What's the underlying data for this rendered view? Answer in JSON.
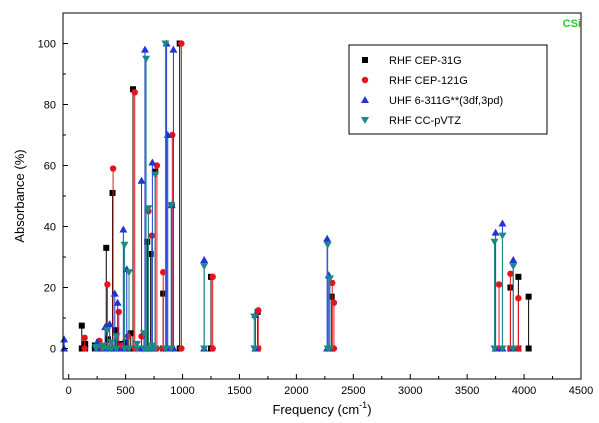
{
  "chart_data": {
    "type": "scatter",
    "style": "stem",
    "corner_label": "CSi",
    "xlabel": "Frequency (cm",
    "xlabel_sup": "-1",
    "xlabel_end": ")",
    "ylabel": "Absorbance (%)",
    "xlim": [
      -50,
      4500
    ],
    "ylim": [
      -10,
      110
    ],
    "xticks": [
      0,
      500,
      1000,
      1500,
      2000,
      2500,
      3000,
      3500,
      4000,
      4500
    ],
    "yticks": [
      0,
      20,
      40,
      60,
      80,
      100
    ],
    "grid": false,
    "legend_position": "top-right",
    "series": [
      {
        "name": "RHF CEP-31G",
        "marker": "square",
        "color": "#000000",
        "points": [
          {
            "x": 115,
            "y": 7.5
          },
          {
            "x": 145,
            "y": 1.5
          },
          {
            "x": 230,
            "y": 1
          },
          {
            "x": 265,
            "y": 2
          },
          {
            "x": 330,
            "y": 33
          },
          {
            "x": 345,
            "y": 3
          },
          {
            "x": 385,
            "y": 51
          },
          {
            "x": 415,
            "y": 6
          },
          {
            "x": 450,
            "y": 1.5
          },
          {
            "x": 500,
            "y": 2
          },
          {
            "x": 545,
            "y": 5
          },
          {
            "x": 565,
            "y": 85
          },
          {
            "x": 690,
            "y": 35
          },
          {
            "x": 720,
            "y": 31
          },
          {
            "x": 760,
            "y": 58
          },
          {
            "x": 830,
            "y": 18
          },
          {
            "x": 905,
            "y": 47
          },
          {
            "x": 975,
            "y": 100
          },
          {
            "x": 1250,
            "y": 23.5
          },
          {
            "x": 1660,
            "y": 12
          },
          {
            "x": 2310,
            "y": 17
          },
          {
            "x": 3880,
            "y": 20
          },
          {
            "x": 3950,
            "y": 23.5
          },
          {
            "x": 4040,
            "y": 17
          }
        ]
      },
      {
        "name": "RHF CEP-121G",
        "marker": "circle",
        "color": "#e8141b",
        "points": [
          {
            "x": 140,
            "y": 3.5
          },
          {
            "x": 270,
            "y": 2.5
          },
          {
            "x": 340,
            "y": 21
          },
          {
            "x": 390,
            "y": 59
          },
          {
            "x": 440,
            "y": 12
          },
          {
            "x": 470,
            "y": 1
          },
          {
            "x": 520,
            "y": 4
          },
          {
            "x": 580,
            "y": 84
          },
          {
            "x": 640,
            "y": 4
          },
          {
            "x": 700,
            "y": 45
          },
          {
            "x": 730,
            "y": 37
          },
          {
            "x": 775,
            "y": 60
          },
          {
            "x": 830,
            "y": 25
          },
          {
            "x": 910,
            "y": 70
          },
          {
            "x": 990,
            "y": 100
          },
          {
            "x": 1265,
            "y": 23.5
          },
          {
            "x": 1665,
            "y": 12.5
          },
          {
            "x": 2315,
            "y": 21.5
          },
          {
            "x": 2330,
            "y": 15
          },
          {
            "x": 3780,
            "y": 21
          },
          {
            "x": 3880,
            "y": 24.5
          },
          {
            "x": 3950,
            "y": 16.5
          }
        ]
      },
      {
        "name": "UHF 6-311G**(3df,3pd)",
        "marker": "triangle-up",
        "color": "#1f35d6",
        "points": [
          {
            "x": -40,
            "y": 3
          },
          {
            "x": 250,
            "y": 2
          },
          {
            "x": 320,
            "y": 7
          },
          {
            "x": 360,
            "y": 8
          },
          {
            "x": 405,
            "y": 18
          },
          {
            "x": 430,
            "y": 15
          },
          {
            "x": 480,
            "y": 39
          },
          {
            "x": 510,
            "y": 26
          },
          {
            "x": 640,
            "y": 55
          },
          {
            "x": 670,
            "y": 98
          },
          {
            "x": 735,
            "y": 61
          },
          {
            "x": 860,
            "y": 100
          },
          {
            "x": 870,
            "y": 70
          },
          {
            "x": 905,
            "y": 47
          },
          {
            "x": 920,
            "y": 98
          },
          {
            "x": 1190,
            "y": 29
          },
          {
            "x": 1640,
            "y": 11
          },
          {
            "x": 2270,
            "y": 36
          },
          {
            "x": 2285,
            "y": 24
          },
          {
            "x": 3750,
            "y": 38
          },
          {
            "x": 3810,
            "y": 41
          },
          {
            "x": 3905,
            "y": 29
          }
        ]
      },
      {
        "name": "RHF CC-pVTZ",
        "marker": "triangle-down",
        "color": "#1a8a82",
        "points": [
          {
            "x": 240,
            "y": 0.5
          },
          {
            "x": 300,
            "y": 1
          },
          {
            "x": 340,
            "y": 6
          },
          {
            "x": 375,
            "y": 2
          },
          {
            "x": 420,
            "y": 4
          },
          {
            "x": 490,
            "y": 34
          },
          {
            "x": 530,
            "y": 25
          },
          {
            "x": 600,
            "y": 1.5
          },
          {
            "x": 660,
            "y": 5
          },
          {
            "x": 680,
            "y": 95
          },
          {
            "x": 700,
            "y": 46
          },
          {
            "x": 730,
            "y": 1
          },
          {
            "x": 760,
            "y": 57
          },
          {
            "x": 850,
            "y": 100
          },
          {
            "x": 900,
            "y": 47
          },
          {
            "x": 1190,
            "y": 27
          },
          {
            "x": 1630,
            "y": 10.5
          },
          {
            "x": 2275,
            "y": 34
          },
          {
            "x": 2295,
            "y": 23
          },
          {
            "x": 3740,
            "y": 35
          },
          {
            "x": 3810,
            "y": 37
          },
          {
            "x": 3905,
            "y": 27
          }
        ]
      }
    ]
  }
}
